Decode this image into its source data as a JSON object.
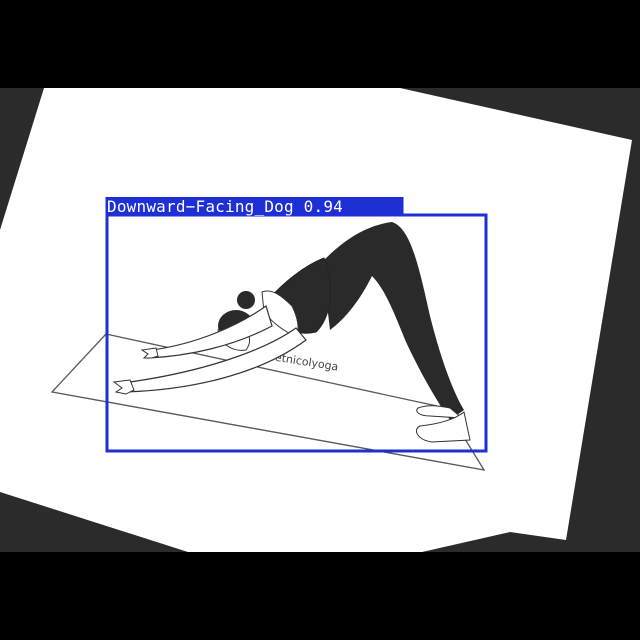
{
  "detection": {
    "class_name": "Downward-Facing_Dog",
    "confidence": "0.94",
    "label": "Downward−Facing_Dog 0.94",
    "box_color": "#1e2fd6"
  },
  "image": {
    "watermark": "janetnicolyoga"
  },
  "colors": {
    "letterbox": "#000000",
    "background_gray": "#2b2b2b",
    "paper": "#ffffff",
    "figure": "#2a2a2a"
  }
}
